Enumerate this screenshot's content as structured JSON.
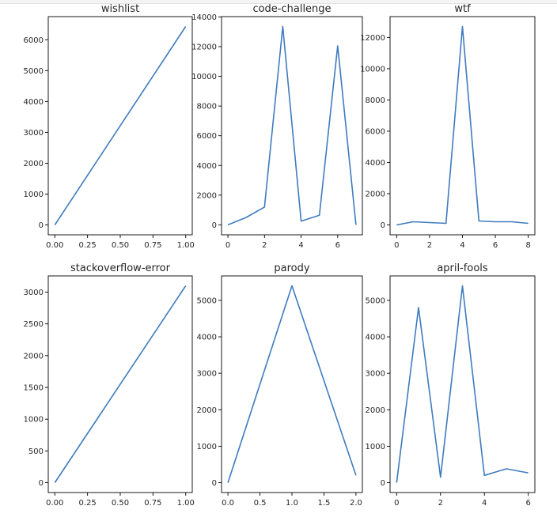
{
  "chart_data": [
    {
      "type": "line",
      "title": "wishlist",
      "x": [
        0,
        1
      ],
      "y": [
        0,
        6430
      ],
      "xlim": [
        -0.05,
        1.05
      ],
      "ylim": [
        -320,
        6750
      ],
      "xticks": [
        0,
        0.25,
        0.5,
        0.75,
        1.0
      ],
      "xtick_labels": [
        "0.00",
        "0.25",
        "0.50",
        "0.75",
        "1.00"
      ],
      "yticks": [
        0,
        1000,
        2000,
        3000,
        4000,
        5000,
        6000
      ],
      "ytick_labels": [
        "0",
        "1000",
        "2000",
        "3000",
        "4000",
        "5000",
        "6000"
      ],
      "color": "#3f7bbf"
    },
    {
      "type": "line",
      "title": "code-challenge",
      "x": [
        0,
        1,
        2,
        3,
        4,
        5,
        6,
        7
      ],
      "y": [
        0,
        500,
        1200,
        13350,
        250,
        650,
        12050,
        0
      ],
      "xlim": [
        -0.35,
        7.35
      ],
      "ylim": [
        -670,
        14020
      ],
      "xticks": [
        0,
        2,
        4,
        6
      ],
      "xtick_labels": [
        "0",
        "2",
        "4",
        "6"
      ],
      "yticks": [
        0,
        2000,
        4000,
        6000,
        8000,
        10000,
        12000,
        14000
      ],
      "ytick_labels": [
        "0",
        "2000",
        "4000",
        "6000",
        "8000",
        "10000",
        "12000",
        "14000"
      ],
      "color": "#3f7bbf"
    },
    {
      "type": "line",
      "title": "wtf",
      "x": [
        0,
        1,
        2,
        3,
        4,
        5,
        6,
        7,
        8
      ],
      "y": [
        0,
        200,
        150,
        100,
        12700,
        250,
        200,
        200,
        100
      ],
      "xlim": [
        -0.4,
        8.4
      ],
      "ylim": [
        -635,
        13335
      ],
      "xticks": [
        0,
        2,
        4,
        6,
        8
      ],
      "xtick_labels": [
        "0",
        "2",
        "4",
        "6",
        "8"
      ],
      "yticks": [
        0,
        2000,
        4000,
        6000,
        8000,
        10000,
        12000
      ],
      "ytick_labels": [
        "0",
        "2000",
        "4000",
        "6000",
        "8000",
        "10000",
        "12000"
      ],
      "color": "#3f7bbf"
    },
    {
      "type": "line",
      "title": "stackoverflow-error",
      "x": [
        0,
        1
      ],
      "y": [
        0,
        3100
      ],
      "xlim": [
        -0.05,
        1.05
      ],
      "ylim": [
        -155,
        3255
      ],
      "xticks": [
        0,
        0.25,
        0.5,
        0.75,
        1.0
      ],
      "xtick_labels": [
        "0.00",
        "0.25",
        "0.50",
        "0.75",
        "1.00"
      ],
      "yticks": [
        0,
        500,
        1000,
        1500,
        2000,
        2500,
        3000
      ],
      "ytick_labels": [
        "0",
        "500",
        "1000",
        "1500",
        "2000",
        "2500",
        "3000"
      ],
      "color": "#3f7bbf"
    },
    {
      "type": "line",
      "title": "parody",
      "x": [
        0,
        1,
        2
      ],
      "y": [
        0,
        5400,
        200
      ],
      "xlim": [
        -0.1,
        2.1
      ],
      "ylim": [
        -270,
        5670
      ],
      "xticks": [
        0,
        0.5,
        1.0,
        1.5,
        2.0
      ],
      "xtick_labels": [
        "0.0",
        "0.5",
        "1.0",
        "1.5",
        "2.0"
      ],
      "yticks": [
        0,
        1000,
        2000,
        3000,
        4000,
        5000
      ],
      "ytick_labels": [
        "0",
        "1000",
        "2000",
        "3000",
        "4000",
        "5000"
      ],
      "color": "#3f7bbf"
    },
    {
      "type": "line",
      "title": "april-fools",
      "x": [
        0,
        1,
        2,
        3,
        4,
        5,
        6
      ],
      "y": [
        0,
        4800,
        150,
        5400,
        200,
        380,
        270
      ],
      "xlim": [
        -0.3,
        6.3
      ],
      "ylim": [
        -270,
        5670
      ],
      "xticks": [
        0,
        2,
        4,
        6
      ],
      "xtick_labels": [
        "0",
        "2",
        "4",
        "6"
      ],
      "yticks": [
        0,
        1000,
        2000,
        3000,
        4000,
        5000
      ],
      "ytick_labels": [
        "0",
        "1000",
        "2000",
        "3000",
        "4000",
        "5000"
      ],
      "color": "#3f7bbf"
    }
  ]
}
